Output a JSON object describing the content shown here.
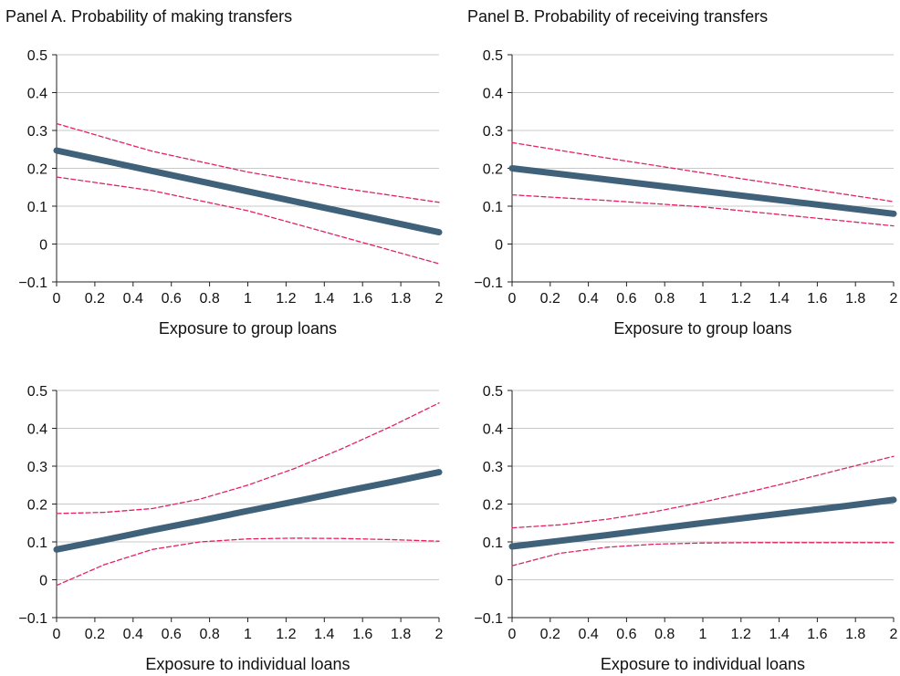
{
  "panel_titles": {
    "a": "Panel A. Probability of making transfers",
    "b": "Panel B. Probability of receiving transfers"
  },
  "colors": {
    "estimate": "#3f6179",
    "ci": "#e0245e",
    "grid": "#c8c8c8",
    "axis": "#222222"
  },
  "chart_data": [
    {
      "type": "line",
      "title": "",
      "xlabel": "Exposure to group loans",
      "ylabel": "",
      "xlim": [
        0,
        2
      ],
      "ylim": [
        -0.1,
        0.5
      ],
      "xticks": [
        "0",
        "0.2",
        "0.4",
        "0.6",
        "0.8",
        "1",
        "1.2",
        "1.4",
        "1.6",
        "1.8",
        "2"
      ],
      "yticks": [
        "−0.1",
        "0",
        "0.1",
        "0.2",
        "0.3",
        "0.4",
        "0.5"
      ],
      "grid": true,
      "x": [
        0,
        0.5,
        1.0,
        1.5,
        2.0
      ],
      "series": [
        {
          "role": "estimate",
          "values": [
            0.247,
            0.193,
            0.139,
            0.085,
            0.031
          ]
        },
        {
          "role": "ci-upper",
          "values": [
            0.318,
            0.245,
            0.19,
            0.147,
            0.11
          ]
        },
        {
          "role": "ci-lower",
          "values": [
            0.177,
            0.141,
            0.088,
            0.018,
            -0.052
          ]
        }
      ]
    },
    {
      "type": "line",
      "title": "",
      "xlabel": "Exposure to group loans",
      "ylabel": "",
      "xlim": [
        0,
        2
      ],
      "ylim": [
        -0.1,
        0.5
      ],
      "xticks": [
        "0",
        "0.2",
        "0.4",
        "0.6",
        "0.8",
        "1",
        "1.2",
        "1.4",
        "1.6",
        "1.8",
        "2"
      ],
      "yticks": [
        "−0.1",
        "0",
        "0.1",
        "0.2",
        "0.3",
        "0.4",
        "0.5"
      ],
      "grid": true,
      "x": [
        0,
        0.5,
        1.0,
        1.5,
        2.0
      ],
      "series": [
        {
          "role": "estimate",
          "values": [
            0.2,
            0.17,
            0.14,
            0.11,
            0.08
          ]
        },
        {
          "role": "ci-upper",
          "values": [
            0.268,
            0.227,
            0.188,
            0.15,
            0.112
          ]
        },
        {
          "role": "ci-lower",
          "values": [
            0.13,
            0.115,
            0.098,
            0.073,
            0.048
          ]
        }
      ]
    },
    {
      "type": "line",
      "title": "",
      "xlabel": "Exposure to individual loans",
      "ylabel": "",
      "xlim": [
        0,
        2
      ],
      "ylim": [
        -0.1,
        0.5
      ],
      "xticks": [
        "0",
        "0.2",
        "0.4",
        "0.6",
        "0.8",
        "1",
        "1.2",
        "1.4",
        "1.6",
        "1.8",
        "2"
      ],
      "yticks": [
        "−0.1",
        "0",
        "0.1",
        "0.2",
        "0.3",
        "0.4",
        "0.5"
      ],
      "grid": true,
      "x": [
        0,
        0.25,
        0.5,
        0.75,
        1.0,
        1.25,
        1.5,
        1.75,
        2.0
      ],
      "series": [
        {
          "role": "estimate",
          "values": [
            0.08,
            0.105,
            0.131,
            0.156,
            0.182,
            0.207,
            0.233,
            0.258,
            0.284
          ]
        },
        {
          "role": "ci-upper",
          "values": [
            0.175,
            0.178,
            0.188,
            0.213,
            0.25,
            0.295,
            0.348,
            0.405,
            0.467
          ]
        },
        {
          "role": "ci-lower",
          "values": [
            -0.015,
            0.04,
            0.08,
            0.1,
            0.108,
            0.11,
            0.109,
            0.106,
            0.102
          ]
        }
      ]
    },
    {
      "type": "line",
      "title": "",
      "xlabel": "Exposure to individual loans",
      "ylabel": "",
      "xlim": [
        0,
        2
      ],
      "ylim": [
        -0.1,
        0.5
      ],
      "xticks": [
        "0",
        "0.2",
        "0.4",
        "0.6",
        "0.8",
        "1",
        "1.2",
        "1.4",
        "1.6",
        "1.8",
        "2"
      ],
      "yticks": [
        "−0.1",
        "0",
        "0.1",
        "0.2",
        "0.3",
        "0.4",
        "0.5"
      ],
      "grid": true,
      "x": [
        0,
        0.25,
        0.5,
        0.75,
        1.0,
        1.25,
        1.5,
        1.75,
        2.0
      ],
      "series": [
        {
          "role": "estimate",
          "values": [
            0.088,
            0.103,
            0.118,
            0.134,
            0.15,
            0.165,
            0.18,
            0.195,
            0.211
          ]
        },
        {
          "role": "ci-upper",
          "values": [
            0.137,
            0.145,
            0.16,
            0.18,
            0.205,
            0.233,
            0.263,
            0.295,
            0.326
          ]
        },
        {
          "role": "ci-lower",
          "values": [
            0.037,
            0.07,
            0.086,
            0.094,
            0.097,
            0.098,
            0.098,
            0.098,
            0.098
          ]
        }
      ]
    }
  ]
}
